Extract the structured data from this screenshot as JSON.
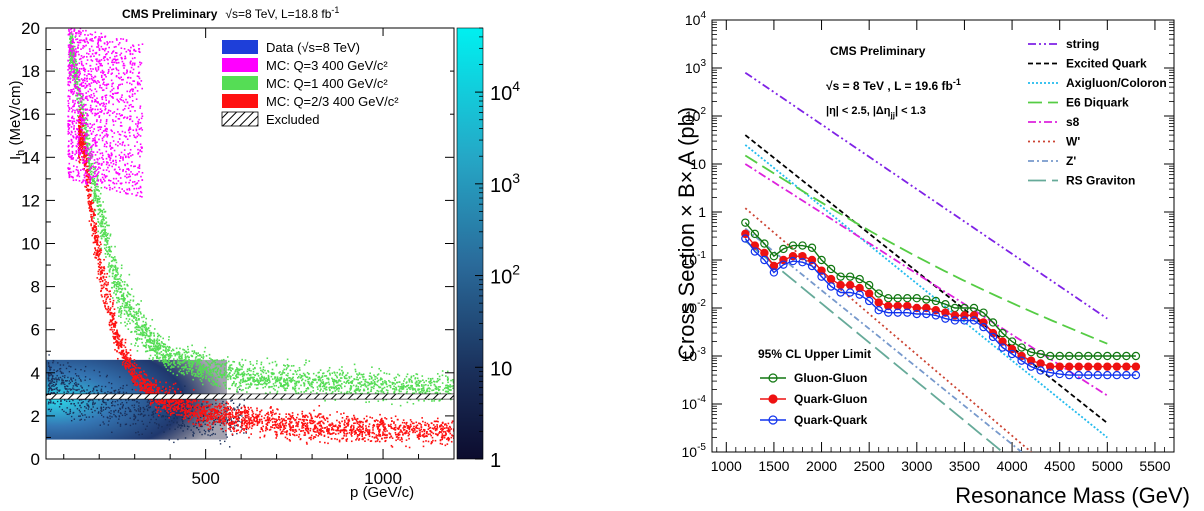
{
  "chart_data": [
    {
      "type": "scatter",
      "subtype": "2d-histogram",
      "header_text": "CMS Preliminary",
      "header_energy": "√s=8 TeV, L=18.8 fb",
      "header_sup": "-1",
      "xlabel": "p (GeV/c)",
      "ylabel": "I",
      "ylabel_sub": "h",
      "ylabel_unit": " (MeV/cm)",
      "xlim": [
        50,
        1200
      ],
      "ylim": [
        0,
        20
      ],
      "x_ticks": [
        500,
        1000
      ],
      "y_ticks": [
        0,
        2,
        4,
        6,
        8,
        10,
        12,
        14,
        16,
        18,
        20
      ],
      "colorbar": {
        "scale": "log",
        "range": [
          1,
          50000
        ],
        "ticks": [
          "1",
          "10",
          "10",
          "10",
          "10"
        ],
        "tick_exponents": [
          "",
          "",
          "2",
          "3",
          "4"
        ],
        "tick_values": [
          1,
          10,
          100,
          1000,
          10000
        ]
      },
      "legend_position": "top-right",
      "excluded_band": [
        2.78,
        3.02
      ],
      "series": [
        {
          "name": "Data (√s=8 TeV)",
          "color": "#1e3fd9",
          "x": [
            60,
            100,
            150,
            200,
            250,
            300,
            350,
            400,
            450,
            500,
            550,
            600,
            700,
            800,
            900,
            1000,
            1100,
            1200
          ],
          "y": [
            3.5,
            3.2,
            2.9,
            2.7,
            2.5,
            2.4,
            2.3,
            2.2,
            2.1,
            2.0,
            2.0,
            2.0,
            1.9,
            1.9,
            1.9,
            1.9,
            1.9,
            1.9
          ]
        },
        {
          "name": "MC: Q=3   400 GeV/c²",
          "color": "#ff00ff",
          "x": [
            120,
            140,
            160,
            180,
            200,
            220,
            240,
            260,
            280,
            300
          ],
          "y": [
            20,
            19,
            18,
            17,
            16,
            15.5,
            15,
            14.5,
            14,
            13.5
          ]
        },
        {
          "name": "MC: Q=1   400 GeV/c²",
          "color": "#55dd55",
          "x": [
            120,
            150,
            180,
            200,
            250,
            300,
            350,
            400,
            500,
            600,
            700,
            800,
            900,
            1000,
            1100,
            1200
          ],
          "y": [
            19,
            16,
            13,
            11.5,
            8,
            6.4,
            5.4,
            4.8,
            4.2,
            3.9,
            3.7,
            3.6,
            3.5,
            3.4,
            3.35,
            3.3
          ]
        },
        {
          "name": "MC: Q=2/3 400 GeV/c²",
          "color": "#ff1111",
          "x": [
            150,
            180,
            200,
            220,
            250,
            300,
            350,
            400,
            500,
            600,
            700,
            800,
            900,
            1000,
            1100,
            1200
          ],
          "y": [
            15,
            11,
            9,
            7.5,
            5.5,
            3.9,
            3.1,
            2.7,
            2.2,
            1.9,
            1.7,
            1.55,
            1.45,
            1.38,
            1.32,
            1.28
          ]
        },
        {
          "name": "Excluded",
          "color": "#000000"
        }
      ]
    },
    {
      "type": "line",
      "yscale": "log",
      "xlabel": "Resonance Mass (GeV)",
      "ylabel": "Cross Section × B× A (pb)",
      "xlim": [
        850,
        5700
      ],
      "ylim": [
        1e-05,
        10000
      ],
      "x_ticks": [
        1000,
        1500,
        2000,
        2500,
        3000,
        3500,
        4000,
        4500,
        5000,
        5500
      ],
      "y_ticks": [
        {
          "v": 1e-05,
          "base": "10",
          "exp": "-5"
        },
        {
          "v": 0.0001,
          "base": "10",
          "exp": "-4"
        },
        {
          "v": 0.001,
          "base": "10",
          "exp": "-3"
        },
        {
          "v": 0.01,
          "base": "10",
          "exp": "-2"
        },
        {
          "v": 0.1,
          "base": "10",
          "exp": "-1"
        },
        {
          "v": 1,
          "base": "1",
          "exp": ""
        },
        {
          "v": 10,
          "base": "10",
          "exp": ""
        },
        {
          "v": 100,
          "base": "10",
          "exp": "2"
        },
        {
          "v": 1000,
          "base": "10",
          "exp": "3"
        },
        {
          "v": 10000,
          "base": "10",
          "exp": "4"
        }
      ],
      "annotations": {
        "cms": "CMS Preliminary",
        "lumi": "√s = 8 TeV , L = 19.6 fb",
        "lumi_sup": "-1",
        "eta": "|η| < 2.5, |Δη",
        "eta_sub": "jj",
        "eta_end": "| < 1.3",
        "limit_title": "95% CL Upper Limit"
      },
      "legend_position": "top-right",
      "theory": [
        {
          "name": "string",
          "color": "#7f22e6",
          "dash": "8 3 2 3 2 3",
          "x": [
            1200,
            5000
          ],
          "y": [
            800,
            0.006
          ]
        },
        {
          "name": "Excited Quark",
          "color": "#000000",
          "dash": "5 3",
          "x": [
            1200,
            5000
          ],
          "y": [
            40,
            4e-05
          ]
        },
        {
          "name": "Axigluon/Coloron",
          "color": "#22bbee",
          "dash": "2 2",
          "x": [
            1200,
            5000
          ],
          "y": [
            25,
            2e-05
          ]
        },
        {
          "name": "E6 Diquark",
          "color": "#55cc44",
          "dash": "14 6",
          "x": [
            1200,
            5000
          ],
          "y": [
            15,
            0.0018
          ]
        },
        {
          "name": "s8",
          "color": "#dd22dd",
          "dash": "8 3 2 3",
          "x": [
            1200,
            5000
          ],
          "y": [
            10,
            0.00015
          ]
        },
        {
          "name": "W'",
          "color": "#cc4433",
          "dash": "2 3",
          "x": [
            1200,
            4200
          ],
          "y": [
            1.2,
            1e-05
          ]
        },
        {
          "name": "Z'",
          "color": "#7799cc",
          "dash": "6 3 2 3",
          "x": [
            1200,
            4100
          ],
          "y": [
            0.45,
            1e-05
          ]
        },
        {
          "name": "RS Graviton",
          "color": "#66aa99",
          "dash": "18 6",
          "x": [
            1200,
            3900
          ],
          "y": [
            0.25,
            1e-05
          ]
        }
      ],
      "limits": [
        {
          "name": "Gluon-Gluon",
          "color": "#117711",
          "fill": "none",
          "x": [
            1200,
            1300,
            1400,
            1500,
            1600,
            1700,
            1800,
            1900,
            2000,
            2100,
            2200,
            2300,
            2400,
            2500,
            2600,
            2700,
            2800,
            2900,
            3000,
            3100,
            3200,
            3300,
            3400,
            3500,
            3600,
            3700,
            3800,
            3900,
            4000,
            4100,
            4200,
            4300,
            4400,
            4500,
            4600,
            4700,
            4800,
            4900,
            5000,
            5100,
            5200,
            5300
          ],
          "y": [
            0.6,
            0.35,
            0.22,
            0.12,
            0.17,
            0.2,
            0.2,
            0.18,
            0.1,
            0.065,
            0.045,
            0.045,
            0.04,
            0.03,
            0.02,
            0.016,
            0.016,
            0.016,
            0.016,
            0.015,
            0.014,
            0.012,
            0.01,
            0.01,
            0.01,
            0.008,
            0.005,
            0.003,
            0.002,
            0.0015,
            0.0012,
            0.0011,
            0.001,
            0.001,
            0.001,
            0.001,
            0.001,
            0.001,
            0.001,
            0.001,
            0.001,
            0.001
          ]
        },
        {
          "name": "Quark-Gluon",
          "color": "#ee1111",
          "fill": "#ee1111",
          "x": [
            1200,
            1300,
            1400,
            1500,
            1600,
            1700,
            1800,
            1900,
            2000,
            2100,
            2200,
            2300,
            2400,
            2500,
            2600,
            2700,
            2800,
            2900,
            3000,
            3100,
            3200,
            3300,
            3400,
            3500,
            3600,
            3700,
            3800,
            3900,
            4000,
            4100,
            4200,
            4300,
            4400,
            4500,
            4600,
            4700,
            4800,
            4900,
            5000,
            5100,
            5200,
            5300
          ],
          "y": [
            0.35,
            0.2,
            0.14,
            0.075,
            0.1,
            0.12,
            0.12,
            0.1,
            0.06,
            0.04,
            0.03,
            0.03,
            0.026,
            0.02,
            0.013,
            0.011,
            0.011,
            0.011,
            0.01,
            0.01,
            0.009,
            0.008,
            0.007,
            0.007,
            0.007,
            0.005,
            0.003,
            0.002,
            0.0014,
            0.001,
            0.0008,
            0.0007,
            0.0006,
            0.0006,
            0.0006,
            0.0006,
            0.0006,
            0.0006,
            0.0006,
            0.0006,
            0.0006,
            0.0006
          ]
        },
        {
          "name": "Quark-Quark",
          "color": "#1133ee",
          "fill": "none",
          "x": [
            1200,
            1300,
            1400,
            1500,
            1600,
            1700,
            1800,
            1900,
            2000,
            2100,
            2200,
            2300,
            2400,
            2500,
            2600,
            2700,
            2800,
            2900,
            3000,
            3100,
            3200,
            3300,
            3400,
            3500,
            3600,
            3700,
            3800,
            3900,
            4000,
            4100,
            4200,
            4300,
            4400,
            4500,
            4600,
            4700,
            4800,
            4900,
            5000,
            5100,
            5200,
            5300
          ],
          "y": [
            0.28,
            0.15,
            0.1,
            0.055,
            0.08,
            0.095,
            0.09,
            0.075,
            0.045,
            0.028,
            0.021,
            0.021,
            0.019,
            0.014,
            0.009,
            0.008,
            0.008,
            0.008,
            0.0075,
            0.0075,
            0.007,
            0.006,
            0.0055,
            0.0055,
            0.0055,
            0.004,
            0.0025,
            0.0015,
            0.0011,
            0.0008,
            0.0006,
            0.0005,
            0.00045,
            0.00042,
            0.0004,
            0.0004,
            0.0004,
            0.0004,
            0.0004,
            0.0004,
            0.0004,
            0.0004
          ]
        }
      ]
    }
  ]
}
